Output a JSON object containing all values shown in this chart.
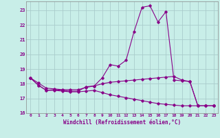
{
  "xlabel": "Windchill (Refroidissement éolien,°C)",
  "background_color": "#c8eee8",
  "grid_color": "#aacccc",
  "line_color": "#880088",
  "xlim": [
    -0.5,
    23.5
  ],
  "ylim": [
    16,
    23.6
  ],
  "yticks": [
    16,
    17,
    18,
    19,
    20,
    21,
    22,
    23
  ],
  "xticks": [
    0,
    1,
    2,
    3,
    4,
    5,
    6,
    7,
    8,
    9,
    10,
    11,
    12,
    13,
    14,
    15,
    16,
    17,
    18,
    19,
    20,
    21,
    22,
    23
  ],
  "line1_x": [
    0,
    1,
    2,
    3,
    4,
    5,
    6,
    7,
    8,
    9,
    10,
    11,
    12,
    13,
    14,
    15,
    16,
    17,
    18,
    19,
    20,
    21,
    22,
    23
  ],
  "line1_y": [
    18.4,
    17.9,
    17.55,
    17.6,
    17.55,
    17.5,
    17.5,
    17.8,
    17.85,
    18.4,
    19.3,
    19.2,
    19.6,
    21.55,
    23.2,
    23.3,
    22.2,
    22.9,
    18.25,
    18.2,
    18.15,
    16.5,
    16.5,
    16.5
  ],
  "line2_x": [
    0,
    1,
    2,
    3,
    4,
    5,
    6,
    7,
    8,
    9,
    10,
    11,
    12,
    13,
    14,
    15,
    16,
    17,
    18,
    19,
    20,
    21,
    22,
    23
  ],
  "line2_y": [
    18.4,
    18.05,
    17.7,
    17.65,
    17.6,
    17.6,
    17.6,
    17.75,
    17.85,
    18.0,
    18.1,
    18.15,
    18.2,
    18.25,
    18.3,
    18.35,
    18.4,
    18.45,
    18.5,
    18.25,
    18.15,
    16.5,
    16.5,
    16.5
  ],
  "line3_x": [
    0,
    1,
    2,
    3,
    4,
    5,
    6,
    7,
    8,
    9,
    10,
    11,
    12,
    13,
    14,
    15,
    16,
    17,
    18,
    19,
    20,
    21,
    22,
    23
  ],
  "line3_y": [
    18.4,
    17.9,
    17.55,
    17.55,
    17.5,
    17.45,
    17.45,
    17.5,
    17.55,
    17.4,
    17.25,
    17.15,
    17.05,
    16.95,
    16.85,
    16.75,
    16.65,
    16.6,
    16.55,
    16.5,
    16.5,
    16.5,
    16.5,
    16.5
  ]
}
